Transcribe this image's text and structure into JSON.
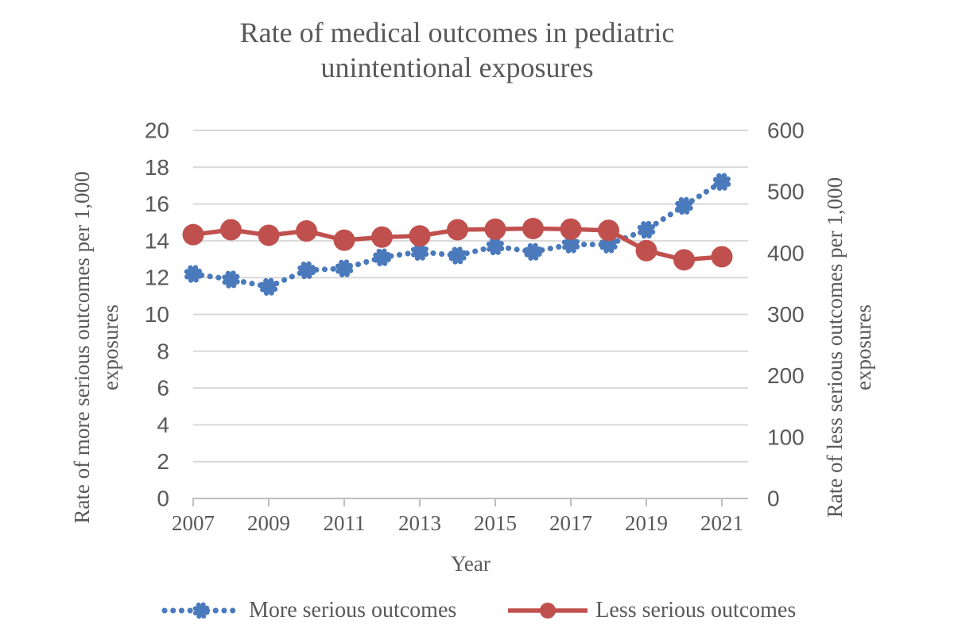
{
  "chart": {
    "title_lines": [
      "Rate of medical outcomes in pediatric",
      "unintentional exposures"
    ],
    "left_axis": {
      "label_lines": [
        "Rate of more serious outcomes per 1,000",
        "exposures"
      ],
      "min": 0,
      "max": 20,
      "step": 2
    },
    "right_axis": {
      "label_lines": [
        "Rate of less serious outcomes per 1,000",
        "exposures"
      ],
      "min": 0,
      "max": 600,
      "step": 100
    },
    "x_axis": {
      "title": "Year",
      "tick_labels": [
        "2007",
        "2009",
        "2011",
        "2013",
        "2015",
        "2017",
        "2019",
        "2021"
      ]
    },
    "colors": {
      "grid": "#D9D9D9",
      "axis_line": "#BFBFBF",
      "text": "#595959",
      "blue_series": "#4A79BC",
      "red_series": "#C0504D"
    }
  },
  "chart_data": {
    "type": "line",
    "title": "Rate of medical outcomes in pediatric unintentional exposures",
    "xlabel": "Year",
    "ylabel_left": "Rate of more serious outcomes per 1,000 exposures",
    "ylabel_right": "Rate of less serious outcomes per 1,000 exposures",
    "x": [
      2007,
      2008,
      2009,
      2010,
      2011,
      2012,
      2013,
      2014,
      2015,
      2016,
      2017,
      2018,
      2019,
      2020,
      2021
    ],
    "series": [
      {
        "name": "More serious outcomes",
        "axis": "left",
        "color": "#4A79BC",
        "line_style": "dotted",
        "marker": "gear",
        "values": [
          12.2,
          11.9,
          11.5,
          12.4,
          12.5,
          13.1,
          13.4,
          13.2,
          13.7,
          13.4,
          13.8,
          13.8,
          14.6,
          15.9,
          17.2
        ]
      },
      {
        "name": "Less serious outcomes",
        "axis": "right",
        "color": "#C0504D",
        "line_style": "solid",
        "marker": "circle",
        "values": [
          430,
          438,
          429,
          436,
          421,
          426,
          428,
          438,
          439,
          440,
          439,
          437,
          404,
          389,
          394
        ]
      }
    ],
    "left_ylim": [
      0,
      20
    ],
    "right_ylim": [
      0,
      600
    ],
    "grid": true,
    "legend_position": "bottom"
  }
}
